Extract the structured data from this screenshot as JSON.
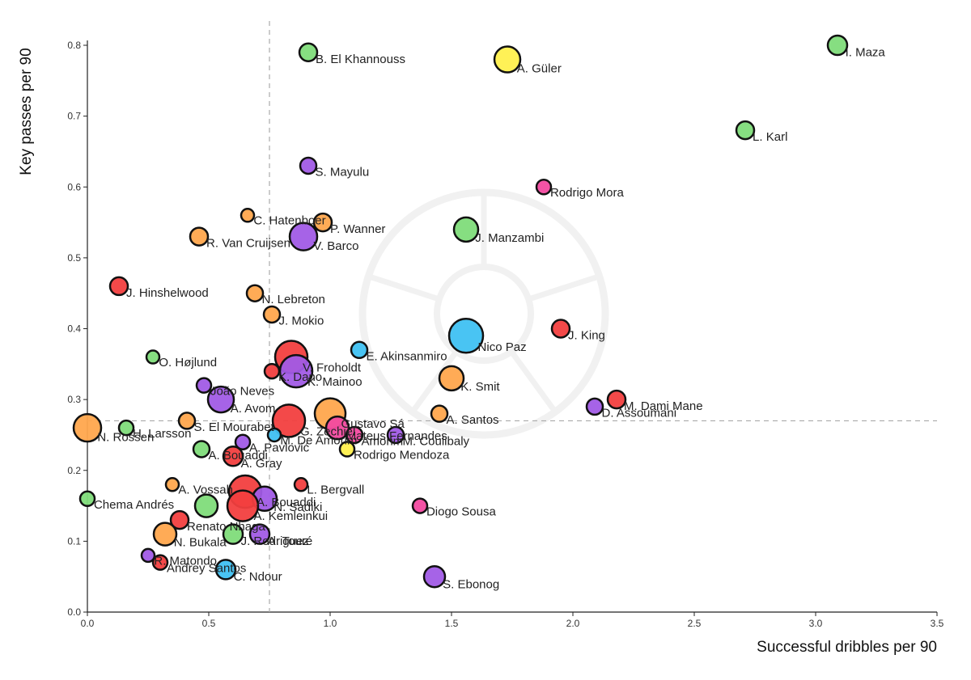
{
  "colors": {
    "red": "#f23f3f",
    "orange": "#ffa64d",
    "green": "#7fdc7a",
    "purple": "#a15be6",
    "blue": "#3fc1f2",
    "yellow": "#fff04d",
    "pink": "#f24aa0"
  },
  "chart_data": {
    "type": "scatter",
    "xlabel": "Successful dribbles per 90",
    "ylabel": "Key passes per 90",
    "xlim": [
      0.0,
      3.5
    ],
    "ylim": [
      0.0,
      0.8
    ],
    "x_ticks": [
      "0.0",
      "0.5",
      "1.0",
      "1.5",
      "2.0",
      "2.5",
      "3.0",
      "3.5"
    ],
    "y_ticks": [
      "0.0",
      "0.1",
      "0.2",
      "0.3",
      "0.4",
      "0.5",
      "0.6",
      "0.7",
      "0.8"
    ],
    "reference_lines": {
      "x": 0.75,
      "y": 0.27
    },
    "grid": false,
    "points": [
      {
        "label": "I. Maza",
        "x": 3.09,
        "y": 0.8,
        "color": "green",
        "size": 12
      },
      {
        "label": "B. El Khannouss",
        "x": 0.91,
        "y": 0.79,
        "color": "green",
        "size": 11
      },
      {
        "label": "A. Güler",
        "x": 1.73,
        "y": 0.78,
        "color": "yellow",
        "size": 16
      },
      {
        "label": "L. Karl",
        "x": 2.71,
        "y": 0.68,
        "color": "green",
        "size": 11
      },
      {
        "label": "S. Mayulu",
        "x": 0.91,
        "y": 0.63,
        "color": "purple",
        "size": 10
      },
      {
        "label": "Rodrigo Mora",
        "x": 1.88,
        "y": 0.6,
        "color": "pink",
        "size": 9
      },
      {
        "label": "C. Hatenboer",
        "x": 0.66,
        "y": 0.56,
        "color": "orange",
        "size": 8
      },
      {
        "label": "P. Wanner",
        "x": 0.97,
        "y": 0.55,
        "color": "orange",
        "size": 11
      },
      {
        "label": "J. Manzambi",
        "x": 1.56,
        "y": 0.54,
        "color": "green",
        "size": 15
      },
      {
        "label": "R. Van Cruijsen",
        "x": 0.46,
        "y": 0.53,
        "color": "orange",
        "size": 11
      },
      {
        "label": "V. Barco",
        "x": 0.89,
        "y": 0.53,
        "color": "purple",
        "size": 17
      },
      {
        "label": "J. Hinshelwood",
        "x": 0.13,
        "y": 0.46,
        "color": "red",
        "size": 11
      },
      {
        "label": "N. Lebreton",
        "x": 0.69,
        "y": 0.45,
        "color": "orange",
        "size": 10
      },
      {
        "label": "J. Mokio",
        "x": 0.76,
        "y": 0.42,
        "color": "orange",
        "size": 10
      },
      {
        "label": "J. King",
        "x": 1.95,
        "y": 0.4,
        "color": "red",
        "size": 11
      },
      {
        "label": "Nico Paz",
        "x": 1.56,
        "y": 0.39,
        "color": "blue",
        "size": 21
      },
      {
        "label": "E. Akinsanmiro",
        "x": 1.12,
        "y": 0.37,
        "color": "blue",
        "size": 10
      },
      {
        "label": "O. Højlund",
        "x": 0.27,
        "y": 0.36,
        "color": "green",
        "size": 8
      },
      {
        "label": "V. Froholdt",
        "x": 0.84,
        "y": 0.36,
        "color": "red",
        "size": 20
      },
      {
        "label": "K. Dano",
        "x": 0.76,
        "y": 0.34,
        "color": "red",
        "size": 9
      },
      {
        "label": "K. Mainoo",
        "x": 0.86,
        "y": 0.34,
        "color": "purple",
        "size": 20
      },
      {
        "label": "K. Smit",
        "x": 1.5,
        "y": 0.33,
        "color": "orange",
        "size": 15
      },
      {
        "label": "João Neves",
        "x": 0.48,
        "y": 0.32,
        "color": "purple",
        "size": 9
      },
      {
        "label": "M. Dami Mane",
        "x": 2.18,
        "y": 0.3,
        "color": "red",
        "size": 11
      },
      {
        "label": "A. Avom",
        "x": 0.55,
        "y": 0.3,
        "color": "purple",
        "size": 16
      },
      {
        "label": "G. Zechiël",
        "x": 0.83,
        "y": 0.27,
        "color": "red",
        "size": 20
      },
      {
        "label": "D. Assoumani",
        "x": 2.09,
        "y": 0.29,
        "color": "purple",
        "size": 10
      },
      {
        "label": "A. Santos",
        "x": 1.45,
        "y": 0.28,
        "color": "orange",
        "size": 10
      },
      {
        "label": "Gustavo Sá",
        "x": 1.0,
        "y": 0.28,
        "color": "orange",
        "size": 19
      },
      {
        "label": "S. El Mourabet",
        "x": 0.41,
        "y": 0.27,
        "color": "orange",
        "size": 10
      },
      {
        "label": "N. Rossen",
        "x": 0.0,
        "y": 0.26,
        "color": "orange",
        "size": 17
      },
      {
        "label": "H. Larsson",
        "x": 0.16,
        "y": 0.26,
        "color": "green",
        "size": 9
      },
      {
        "label": "Mateus Fernandes",
        "x": 1.03,
        "y": 0.26,
        "color": "pink",
        "size": 14
      },
      {
        "label": "M. Coulibaly",
        "x": 1.27,
        "y": 0.25,
        "color": "purple",
        "size": 10
      },
      {
        "label": "Amorim",
        "x": 1.1,
        "y": 0.25,
        "color": "pink",
        "size": 10
      },
      {
        "label": "M. De Amorim",
        "x": 0.77,
        "y": 0.25,
        "color": "blue",
        "size": 8
      },
      {
        "label": "A. Bouaddi",
        "x": 0.47,
        "y": 0.23,
        "color": "green",
        "size": 10
      },
      {
        "label": "Rodrigo Mendoza",
        "x": 1.07,
        "y": 0.23,
        "color": "yellow",
        "size": 9
      },
      {
        "label": "A. Gray",
        "x": 0.6,
        "y": 0.22,
        "color": "red",
        "size": 12
      },
      {
        "label": "A. Pavlović",
        "x": 0.64,
        "y": 0.24,
        "color": "purple",
        "size": 9
      },
      {
        "label": "A. Vossah",
        "x": 0.35,
        "y": 0.18,
        "color": "orange",
        "size": 8
      },
      {
        "label": "L. Bergvall",
        "x": 0.88,
        "y": 0.18,
        "color": "red",
        "size": 8
      },
      {
        "label": "A. Bouaddi",
        "x": 0.65,
        "y": 0.17,
        "color": "red",
        "size": 20
      },
      {
        "label": "N. Sadiki",
        "x": 0.73,
        "y": 0.16,
        "color": "purple",
        "size": 15
      },
      {
        "label": "Diogo Sousa",
        "x": 1.37,
        "y": 0.15,
        "color": "pink",
        "size": 9
      },
      {
        "label": "Chema Andrés",
        "x": 0.0,
        "y": 0.16,
        "color": "green",
        "size": 9
      },
      {
        "label": "A. Kemleinkui",
        "x": 0.64,
        "y": 0.15,
        "color": "red",
        "size": 19
      },
      {
        "label": "",
        "x": 0.49,
        "y": 0.15,
        "color": "green",
        "size": 14
      },
      {
        "label": "Renato Nhaga",
        "x": 0.38,
        "y": 0.13,
        "color": "red",
        "size": 11
      },
      {
        "label": "N. Bukala",
        "x": 0.32,
        "y": 0.11,
        "color": "orange",
        "size": 14
      },
      {
        "label": "J. Rodriguez",
        "x": 0.6,
        "y": 0.11,
        "color": "green",
        "size": 12
      },
      {
        "label": "A. Touré",
        "x": 0.71,
        "y": 0.11,
        "color": "purple",
        "size": 12
      },
      {
        "label": "R. Matondo",
        "x": 0.25,
        "y": 0.08,
        "color": "purple",
        "size": 8
      },
      {
        "label": "Andrey Santos",
        "x": 0.3,
        "y": 0.07,
        "color": "red",
        "size": 9
      },
      {
        "label": "C. Ndour",
        "x": 0.57,
        "y": 0.06,
        "color": "blue",
        "size": 12
      },
      {
        "label": "S. Ebonog",
        "x": 1.43,
        "y": 0.05,
        "color": "purple",
        "size": 13
      }
    ]
  }
}
